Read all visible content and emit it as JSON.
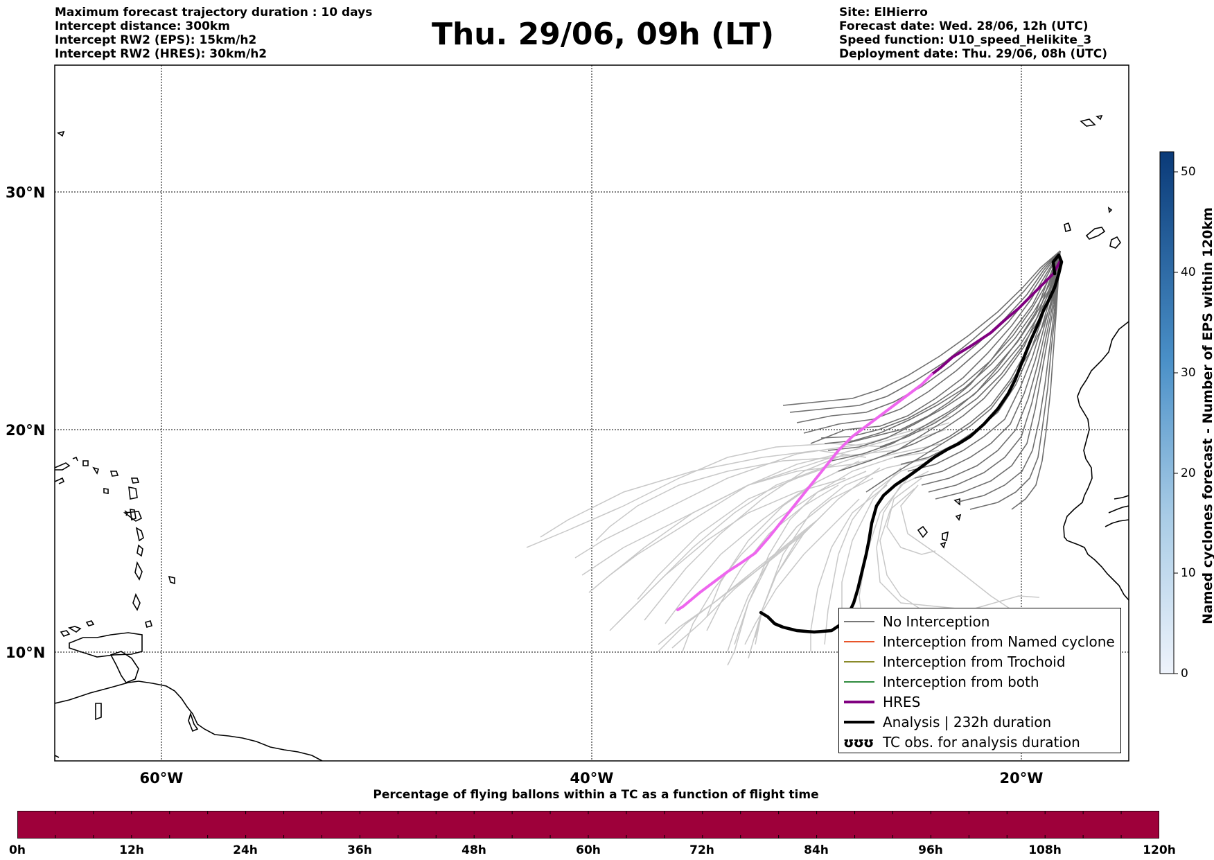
{
  "header": {
    "left_lines": [
      "Maximum forecast trajectory duration : 10 days",
      "Intercept distance: 300km",
      "Intercept RW2 (EPS):  15km/h2",
      "Intercept RW2 (HRES): 30km/h2"
    ],
    "title": "Thu. 29/06, 09h (LT)",
    "right_lines": [
      "Site: ElHierro",
      "Forecast date: Wed. 28/06, 12h (UTC)",
      "Speed function: U10_speed_Helikite_3",
      "Deployment date: Thu. 29/06, 08h (UTC)"
    ]
  },
  "map": {
    "lat_labels": [
      "30°N",
      "20°N",
      "10°N"
    ],
    "lon_labels": [
      "60°W",
      "40°W",
      "20°W"
    ],
    "grid": "dotted",
    "extent": {
      "lon_min": -65,
      "lon_max": -15,
      "lat_min": 5.3,
      "lat_max": 34.5
    },
    "colors": {
      "eps_dark": "#6f6f6f",
      "eps_light": "#c8c8c8",
      "hres_dark": "#800080",
      "hres_light": "#ee66ee",
      "analysis": "#000000"
    }
  },
  "legend": {
    "items": [
      {
        "label": "No Interception",
        "color": "#777777",
        "style": "thin"
      },
      {
        "label": "Interception from Named cyclone",
        "color": "#e8552a",
        "style": "thin"
      },
      {
        "label": "Interception from Trochoid",
        "color": "#8a8a2a",
        "style": "thin"
      },
      {
        "label": "Interception from both",
        "color": "#2e8b3e",
        "style": "thin"
      },
      {
        "label": "HRES",
        "color": "#800080",
        "style": "thick"
      },
      {
        "label": "Analysis | 232h duration",
        "color": "#000000",
        "style": "thick"
      },
      {
        "label": "TC obs. for analysis duration",
        "color": "#000000",
        "style": "symbol",
        "symbol": "ʊʊʊ"
      }
    ]
  },
  "colorbar": {
    "label": "Named cyclones forecast - Number of EPS within 120km",
    "ticks": [
      "0",
      "10",
      "20",
      "30",
      "40",
      "50"
    ],
    "max": 52,
    "color_low": "#e6eef8",
    "color_high": "#0a3a78"
  },
  "flight_bar": {
    "title": "Percentage of flying ballons within a TC as a function of flight time",
    "ticks": [
      "0h",
      "12h",
      "24h",
      "36h",
      "48h",
      "60h",
      "72h",
      "84h",
      "96h",
      "108h",
      "120h"
    ],
    "color": "#9e003a"
  }
}
